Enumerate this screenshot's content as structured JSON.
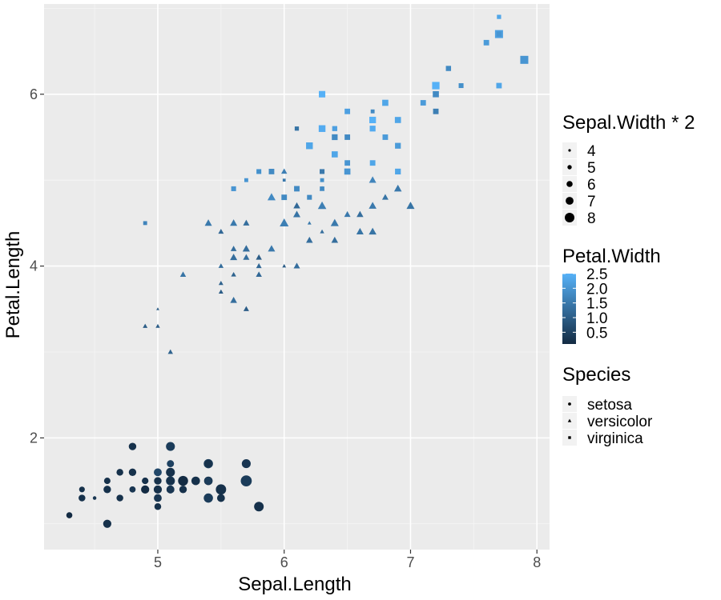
{
  "chart_data": {
    "type": "scatter",
    "xlabel": "Sepal.Length",
    "ylabel": "Petal.Length",
    "xlim": [
      4.1,
      8.1
    ],
    "ylim": [
      0.7,
      7.05
    ],
    "x_ticks": [
      5,
      6,
      7,
      8
    ],
    "y_ticks": [
      2,
      4,
      6
    ],
    "grid": true,
    "legend_placement": "right",
    "legends": {
      "size": {
        "title": "Sepal.Width * 2",
        "values": [
          4,
          5,
          6,
          7,
          8
        ],
        "labels": [
          "4",
          "5",
          "6",
          "7",
          "8"
        ]
      },
      "color": {
        "title": "Petal.Width",
        "ticks": [
          0.5,
          1.0,
          1.5,
          2.0,
          2.5
        ],
        "labels": [
          "0.5",
          "1.0",
          "1.5",
          "2.0",
          "2.5"
        ],
        "low_color": "#132B43",
        "high_color": "#56B1F7"
      },
      "shape": {
        "title": "Species",
        "labels": [
          "setosa",
          "versicolor",
          "virginica"
        ],
        "shapes": [
          "circle",
          "triangle",
          "square"
        ]
      }
    },
    "series": [
      {
        "species": "setosa",
        "shape": "circle",
        "points": [
          [
            5.1,
            1.4,
            7.0,
            0.2
          ],
          [
            4.9,
            1.4,
            6.0,
            0.2
          ],
          [
            4.7,
            1.3,
            6.4,
            0.2
          ],
          [
            4.6,
            1.5,
            6.2,
            0.2
          ],
          [
            5.0,
            1.4,
            7.2,
            0.2
          ],
          [
            5.4,
            1.7,
            7.8,
            0.4
          ],
          [
            4.6,
            1.4,
            6.8,
            0.3
          ],
          [
            5.0,
            1.5,
            6.8,
            0.2
          ],
          [
            4.4,
            1.4,
            5.8,
            0.2
          ],
          [
            4.9,
            1.5,
            6.2,
            0.1
          ],
          [
            5.4,
            1.5,
            7.4,
            0.2
          ],
          [
            4.8,
            1.6,
            6.8,
            0.2
          ],
          [
            4.8,
            1.4,
            6.0,
            0.1
          ],
          [
            4.3,
            1.1,
            6.0,
            0.1
          ],
          [
            5.8,
            1.2,
            8.0,
            0.2
          ],
          [
            5.7,
            1.5,
            8.8,
            0.4
          ],
          [
            5.4,
            1.3,
            7.8,
            0.4
          ],
          [
            5.1,
            1.4,
            7.0,
            0.3
          ],
          [
            5.7,
            1.7,
            7.6,
            0.3
          ],
          [
            5.1,
            1.5,
            7.6,
            0.3
          ],
          [
            5.4,
            1.7,
            6.8,
            0.2
          ],
          [
            5.1,
            1.5,
            7.4,
            0.4
          ],
          [
            4.6,
            1.0,
            7.2,
            0.2
          ],
          [
            5.1,
            1.7,
            6.6,
            0.5
          ],
          [
            4.8,
            1.9,
            6.8,
            0.2
          ],
          [
            5.0,
            1.6,
            6.0,
            0.2
          ],
          [
            5.0,
            1.6,
            6.8,
            0.4
          ],
          [
            5.2,
            1.5,
            7.0,
            0.2
          ],
          [
            5.2,
            1.4,
            6.8,
            0.2
          ],
          [
            4.7,
            1.6,
            6.4,
            0.2
          ],
          [
            4.8,
            1.6,
            6.2,
            0.2
          ],
          [
            5.4,
            1.5,
            6.8,
            0.4
          ],
          [
            5.2,
            1.5,
            8.2,
            0.1
          ],
          [
            5.5,
            1.4,
            8.4,
            0.2
          ],
          [
            4.9,
            1.5,
            6.2,
            0.2
          ],
          [
            5.0,
            1.2,
            6.4,
            0.2
          ],
          [
            5.5,
            1.3,
            7.0,
            0.2
          ],
          [
            4.9,
            1.4,
            7.2,
            0.1
          ],
          [
            4.4,
            1.3,
            6.0,
            0.2
          ],
          [
            5.1,
            1.5,
            6.8,
            0.2
          ],
          [
            5.0,
            1.3,
            7.0,
            0.3
          ],
          [
            4.5,
            1.3,
            4.6,
            0.3
          ],
          [
            4.4,
            1.3,
            6.4,
            0.2
          ],
          [
            5.0,
            1.6,
            7.0,
            0.6
          ],
          [
            5.1,
            1.9,
            7.6,
            0.4
          ],
          [
            4.8,
            1.4,
            6.0,
            0.3
          ],
          [
            5.1,
            1.6,
            7.6,
            0.2
          ],
          [
            4.6,
            1.4,
            6.4,
            0.2
          ],
          [
            5.3,
            1.5,
            7.4,
            0.2
          ],
          [
            5.0,
            1.4,
            6.6,
            0.2
          ]
        ]
      },
      {
        "species": "versicolor",
        "shape": "triangle",
        "points": [
          [
            7.0,
            4.7,
            6.4,
            1.4
          ],
          [
            6.4,
            4.5,
            6.4,
            1.5
          ],
          [
            6.9,
            4.9,
            6.2,
            1.5
          ],
          [
            5.5,
            4.0,
            4.6,
            1.3
          ],
          [
            6.5,
            4.6,
            5.6,
            1.5
          ],
          [
            5.7,
            4.5,
            5.6,
            1.3
          ],
          [
            6.3,
            4.7,
            6.6,
            1.6
          ],
          [
            4.9,
            3.3,
            4.8,
            1.0
          ],
          [
            6.6,
            4.6,
            5.8,
            1.3
          ],
          [
            5.2,
            3.9,
            5.4,
            1.4
          ],
          [
            5.0,
            3.5,
            4.0,
            1.0
          ],
          [
            5.9,
            4.2,
            6.0,
            1.5
          ],
          [
            6.0,
            4.0,
            4.4,
            1.0
          ],
          [
            6.1,
            4.7,
            5.8,
            1.4
          ],
          [
            5.6,
            3.6,
            5.8,
            1.3
          ],
          [
            6.7,
            4.4,
            6.2,
            1.4
          ],
          [
            5.6,
            4.5,
            6.0,
            1.5
          ],
          [
            5.8,
            4.1,
            5.4,
            1.0
          ],
          [
            6.2,
            4.5,
            4.4,
            1.5
          ],
          [
            5.6,
            3.9,
            5.0,
            1.1
          ],
          [
            5.9,
            4.8,
            6.4,
            1.8
          ],
          [
            6.1,
            4.0,
            5.6,
            1.3
          ],
          [
            6.3,
            4.9,
            5.0,
            1.5
          ],
          [
            6.1,
            4.7,
            5.6,
            1.2
          ],
          [
            6.4,
            4.3,
            5.8,
            1.3
          ],
          [
            6.6,
            4.4,
            6.0,
            1.4
          ],
          [
            6.8,
            4.8,
            5.6,
            1.4
          ],
          [
            6.7,
            5.0,
            6.0,
            1.7
          ],
          [
            6.0,
            4.5,
            5.8,
            1.5
          ],
          [
            5.7,
            3.5,
            5.2,
            1.0
          ],
          [
            5.5,
            3.8,
            4.8,
            1.1
          ],
          [
            5.5,
            3.7,
            4.8,
            1.0
          ],
          [
            5.8,
            3.9,
            5.4,
            1.2
          ],
          [
            6.0,
            5.1,
            5.4,
            1.6
          ],
          [
            5.4,
            4.5,
            6.0,
            1.5
          ],
          [
            6.0,
            4.5,
            6.8,
            1.6
          ],
          [
            6.7,
            4.7,
            6.2,
            1.5
          ],
          [
            6.3,
            4.4,
            4.6,
            1.3
          ],
          [
            5.6,
            4.1,
            6.0,
            1.3
          ],
          [
            5.5,
            4.0,
            5.0,
            1.3
          ],
          [
            5.5,
            4.4,
            5.2,
            1.2
          ],
          [
            6.1,
            4.6,
            6.0,
            1.4
          ],
          [
            5.8,
            4.0,
            5.2,
            1.2
          ],
          [
            5.0,
            3.3,
            4.6,
            1.0
          ],
          [
            5.6,
            4.2,
            5.4,
            1.3
          ],
          [
            5.7,
            4.2,
            6.0,
            1.2
          ],
          [
            5.7,
            4.2,
            5.8,
            1.3
          ],
          [
            6.2,
            4.3,
            5.8,
            1.3
          ],
          [
            5.1,
            3.0,
            5.0,
            1.1
          ],
          [
            5.7,
            4.1,
            5.6,
            1.3
          ]
        ]
      },
      {
        "species": "virginica",
        "shape": "square",
        "points": [
          [
            6.3,
            6.0,
            6.6,
            2.5
          ],
          [
            5.8,
            5.1,
            5.4,
            1.9
          ],
          [
            7.1,
            5.9,
            6.0,
            2.1
          ],
          [
            6.3,
            5.6,
            5.8,
            1.8
          ],
          [
            6.5,
            5.8,
            6.0,
            2.2
          ],
          [
            7.6,
            6.6,
            6.0,
            2.1
          ],
          [
            4.9,
            4.5,
            5.0,
            1.7
          ],
          [
            7.3,
            6.3,
            5.8,
            1.8
          ],
          [
            6.7,
            5.8,
            5.0,
            1.8
          ],
          [
            7.2,
            6.1,
            7.2,
            2.5
          ],
          [
            6.5,
            5.1,
            6.4,
            2.0
          ],
          [
            6.4,
            5.3,
            5.4,
            1.9
          ],
          [
            6.8,
            5.5,
            6.0,
            2.1
          ],
          [
            5.7,
            5.0,
            5.0,
            2.0
          ],
          [
            5.8,
            5.1,
            5.6,
            2.4
          ],
          [
            6.4,
            5.3,
            6.4,
            2.3
          ],
          [
            6.5,
            5.5,
            6.0,
            1.8
          ],
          [
            7.7,
            6.7,
            7.6,
            2.2
          ],
          [
            7.7,
            6.9,
            5.2,
            2.3
          ],
          [
            6.0,
            5.0,
            4.4,
            1.5
          ],
          [
            6.9,
            5.7,
            6.4,
            2.3
          ],
          [
            5.6,
            4.9,
            5.6,
            2.0
          ],
          [
            7.7,
            6.7,
            5.6,
            2.0
          ],
          [
            6.3,
            4.9,
            5.4,
            1.8
          ],
          [
            6.7,
            5.7,
            6.6,
            2.1
          ],
          [
            7.2,
            6.0,
            6.4,
            1.8
          ],
          [
            6.2,
            4.8,
            5.6,
            1.8
          ],
          [
            6.1,
            4.9,
            6.0,
            1.8
          ],
          [
            6.4,
            5.6,
            5.6,
            2.1
          ],
          [
            7.2,
            5.8,
            6.0,
            1.6
          ],
          [
            7.4,
            6.1,
            5.6,
            1.9
          ],
          [
            7.9,
            6.4,
            7.6,
            2.0
          ],
          [
            6.4,
            5.6,
            5.6,
            2.2
          ],
          [
            6.3,
            5.1,
            5.6,
            1.5
          ],
          [
            6.1,
            5.6,
            5.2,
            1.4
          ],
          [
            7.7,
            6.1,
            6.0,
            2.3
          ],
          [
            6.3,
            5.6,
            6.8,
            2.4
          ],
          [
            6.4,
            5.5,
            6.2,
            1.8
          ],
          [
            6.0,
            4.8,
            6.0,
            1.8
          ],
          [
            6.9,
            5.4,
            6.2,
            2.1
          ],
          [
            6.7,
            5.6,
            6.2,
            2.4
          ],
          [
            6.9,
            5.1,
            6.2,
            2.3
          ],
          [
            5.8,
            5.1,
            5.4,
            1.9
          ],
          [
            6.8,
            5.9,
            6.4,
            2.3
          ],
          [
            6.7,
            5.7,
            6.6,
            2.5
          ],
          [
            6.7,
            5.2,
            6.0,
            2.3
          ],
          [
            6.3,
            5.0,
            5.0,
            1.9
          ],
          [
            6.5,
            5.2,
            6.0,
            2.0
          ],
          [
            6.2,
            5.4,
            6.8,
            2.3
          ],
          [
            5.9,
            5.1,
            6.0,
            1.8
          ]
        ]
      }
    ]
  }
}
